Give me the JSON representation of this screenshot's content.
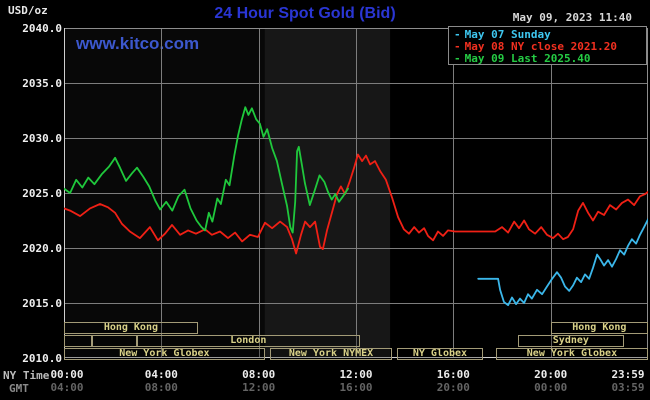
{
  "header": {
    "instrument": "USD/oz",
    "title": "24 Hour Spot Gold (Bid)",
    "timestamp": "May 09, 2023 11:40",
    "watermark": "www.kitco.com"
  },
  "legend": [
    {
      "label": "May 07 Sunday",
      "color": "#3ec7f0"
    },
    {
      "label": "May 08 NY close 2021.20",
      "color": "#f23020"
    },
    {
      "label": "May 09 Last 2025.40",
      "color": "#25cc44"
    }
  ],
  "axis": {
    "ny_time_label": "NY Time",
    "gmt_label": "GMT",
    "ticks": [
      {
        "h": 0,
        "ny": "00:00",
        "gmt": "04:00"
      },
      {
        "h": 4,
        "ny": "04:00",
        "gmt": "08:00"
      },
      {
        "h": 8,
        "ny": "08:00",
        "gmt": "12:00"
      },
      {
        "h": 12,
        "ny": "12:00",
        "gmt": "16:00"
      },
      {
        "h": 16,
        "ny": "16:00",
        "gmt": "20:00"
      },
      {
        "h": 20,
        "ny": "20:00",
        "gmt": "00:00"
      },
      {
        "h": 23.983,
        "ny": "23:59",
        "gmt": "03:59"
      }
    ]
  },
  "sessions": [
    {
      "row": 1,
      "from": 0.0,
      "to": 5.5,
      "label": "Hong Kong"
    },
    {
      "row": 1,
      "from": 20.0,
      "to": 24.0,
      "label": "Hong Kong"
    },
    {
      "row": 2,
      "from": 0.0,
      "to": 1.15,
      "label": ""
    },
    {
      "row": 2,
      "from": 1.15,
      "to": 3.0,
      "label": ""
    },
    {
      "row": 2,
      "from": 3.0,
      "to": 12.15,
      "label": "London"
    },
    {
      "row": 2,
      "from": 18.66,
      "to": 23.0,
      "label": "Sydney"
    },
    {
      "row": 3,
      "from": 0.0,
      "to": 8.25,
      "label": "New York Globex"
    },
    {
      "row": 3,
      "from": 8.45,
      "to": 13.5,
      "label": "New York NYMEX"
    },
    {
      "row": 3,
      "from": 13.7,
      "to": 17.2,
      "label": "NY Globex"
    },
    {
      "row": 3,
      "from": 17.75,
      "to": 24.0,
      "label": "New York Globex"
    }
  ],
  "chart_data": {
    "type": "line",
    "title": "24 Hour Spot Gold (Bid)",
    "x_axis": {
      "unit": "hour (NY time)",
      "range": [
        0,
        24
      ]
    },
    "y_axis": {
      "unit": "USD/oz",
      "range": [
        2010,
        2040
      ],
      "ticks": [
        2040,
        2035,
        2030,
        2025,
        2020,
        2015,
        2010
      ]
    },
    "grid": true,
    "legend_position": "top-right",
    "highlight_bands": [
      {
        "from": 0.0,
        "to": 8.25,
        "opacity": 0.03
      },
      {
        "from": 8.25,
        "to": 13.4,
        "opacity": 0.09
      }
    ],
    "series": [
      {
        "name": "May 07 Sunday",
        "color": "#3bb7ea",
        "points": [
          [
            17.02,
            2017.2
          ],
          [
            17.84,
            2017.2
          ],
          [
            17.92,
            2016.2
          ],
          [
            18.08,
            2015.1
          ],
          [
            18.25,
            2014.8
          ],
          [
            18.41,
            2015.5
          ],
          [
            18.58,
            2014.9
          ],
          [
            18.74,
            2015.4
          ],
          [
            18.91,
            2015.0
          ],
          [
            19.07,
            2015.8
          ],
          [
            19.23,
            2015.4
          ],
          [
            19.44,
            2016.2
          ],
          [
            19.65,
            2015.8
          ],
          [
            19.85,
            2016.5
          ],
          [
            20.06,
            2017.2
          ],
          [
            20.26,
            2017.8
          ],
          [
            20.43,
            2017.3
          ],
          [
            20.59,
            2016.5
          ],
          [
            20.76,
            2016.1
          ],
          [
            20.92,
            2016.6
          ],
          [
            21.08,
            2017.3
          ],
          [
            21.25,
            2016.9
          ],
          [
            21.41,
            2017.6
          ],
          [
            21.58,
            2017.2
          ],
          [
            21.74,
            2018.2
          ],
          [
            21.91,
            2019.4
          ],
          [
            22.03,
            2019.0
          ],
          [
            22.19,
            2018.4
          ],
          [
            22.36,
            2018.9
          ],
          [
            22.52,
            2018.3
          ],
          [
            22.69,
            2019.0
          ],
          [
            22.85,
            2019.8
          ],
          [
            23.02,
            2019.4
          ],
          [
            23.18,
            2020.2
          ],
          [
            23.34,
            2020.8
          ],
          [
            23.51,
            2020.4
          ],
          [
            23.67,
            2021.2
          ],
          [
            23.84,
            2021.9
          ],
          [
            24.0,
            2022.6
          ]
        ]
      },
      {
        "name": "May 08 NY close 2021.20",
        "color": "#f02015",
        "close": 2021.2,
        "points": [
          [
            0.0,
            2023.6
          ],
          [
            0.25,
            2023.4
          ],
          [
            0.66,
            2022.9
          ],
          [
            1.07,
            2023.6
          ],
          [
            1.48,
            2024.0
          ],
          [
            1.81,
            2023.7
          ],
          [
            2.1,
            2023.2
          ],
          [
            2.38,
            2022.2
          ],
          [
            2.71,
            2021.5
          ],
          [
            3.12,
            2020.9
          ],
          [
            3.53,
            2021.9
          ],
          [
            3.86,
            2020.7
          ],
          [
            4.15,
            2021.3
          ],
          [
            4.44,
            2022.1
          ],
          [
            4.77,
            2021.2
          ],
          [
            5.1,
            2021.6
          ],
          [
            5.42,
            2021.3
          ],
          [
            5.8,
            2021.7
          ],
          [
            6.08,
            2021.2
          ],
          [
            6.41,
            2021.5
          ],
          [
            6.74,
            2020.9
          ],
          [
            7.03,
            2021.4
          ],
          [
            7.32,
            2020.6
          ],
          [
            7.64,
            2021.2
          ],
          [
            7.97,
            2021.0
          ],
          [
            8.26,
            2022.3
          ],
          [
            8.55,
            2021.8
          ],
          [
            8.88,
            2022.4
          ],
          [
            9.17,
            2021.9
          ],
          [
            9.37,
            2020.8
          ],
          [
            9.54,
            2019.5
          ],
          [
            9.74,
            2021.2
          ],
          [
            9.91,
            2022.4
          ],
          [
            10.11,
            2021.9
          ],
          [
            10.32,
            2022.4
          ],
          [
            10.52,
            2020.1
          ],
          [
            10.64,
            2019.9
          ],
          [
            10.81,
            2021.6
          ],
          [
            11.01,
            2023.2
          ],
          [
            11.22,
            2024.9
          ],
          [
            11.38,
            2025.6
          ],
          [
            11.55,
            2024.9
          ],
          [
            11.75,
            2026.1
          ],
          [
            11.92,
            2027.3
          ],
          [
            12.08,
            2028.5
          ],
          [
            12.25,
            2027.9
          ],
          [
            12.41,
            2028.4
          ],
          [
            12.58,
            2027.6
          ],
          [
            12.78,
            2027.9
          ],
          [
            12.99,
            2027.0
          ],
          [
            13.23,
            2026.2
          ],
          [
            13.48,
            2024.6
          ],
          [
            13.73,
            2022.8
          ],
          [
            13.97,
            2021.7
          ],
          [
            14.18,
            2021.3
          ],
          [
            14.39,
            2021.9
          ],
          [
            14.59,
            2021.4
          ],
          [
            14.8,
            2021.8
          ],
          [
            14.96,
            2021.1
          ],
          [
            15.17,
            2020.7
          ],
          [
            15.37,
            2021.5
          ],
          [
            15.58,
            2021.1
          ],
          [
            15.78,
            2021.6
          ],
          [
            16.07,
            2021.5
          ],
          [
            16.69,
            2021.5
          ],
          [
            17.3,
            2021.5
          ],
          [
            17.72,
            2021.5
          ],
          [
            18.0,
            2021.9
          ],
          [
            18.25,
            2021.4
          ],
          [
            18.5,
            2022.4
          ],
          [
            18.7,
            2021.8
          ],
          [
            18.91,
            2022.5
          ],
          [
            19.11,
            2021.7
          ],
          [
            19.36,
            2021.3
          ],
          [
            19.61,
            2021.9
          ],
          [
            19.85,
            2021.2
          ],
          [
            20.1,
            2020.9
          ],
          [
            20.3,
            2021.3
          ],
          [
            20.51,
            2020.8
          ],
          [
            20.71,
            2021.0
          ],
          [
            20.92,
            2021.7
          ],
          [
            21.13,
            2023.4
          ],
          [
            21.33,
            2024.1
          ],
          [
            21.54,
            2023.2
          ],
          [
            21.74,
            2022.5
          ],
          [
            21.95,
            2023.3
          ],
          [
            22.19,
            2023.0
          ],
          [
            22.44,
            2023.9
          ],
          [
            22.69,
            2023.5
          ],
          [
            22.93,
            2024.1
          ],
          [
            23.18,
            2024.4
          ],
          [
            23.43,
            2023.9
          ],
          [
            23.67,
            2024.7
          ],
          [
            23.88,
            2024.9
          ],
          [
            24.0,
            2025.1
          ]
        ]
      },
      {
        "name": "May 09 Last 2025.40",
        "color": "#1fc83c",
        "last": 2025.4,
        "points": [
          [
            0.0,
            2025.4
          ],
          [
            0.25,
            2025.0
          ],
          [
            0.5,
            2026.2
          ],
          [
            0.75,
            2025.5
          ],
          [
            1.0,
            2026.4
          ],
          [
            1.25,
            2025.8
          ],
          [
            1.55,
            2026.7
          ],
          [
            1.85,
            2027.4
          ],
          [
            2.1,
            2028.2
          ],
          [
            2.3,
            2027.3
          ],
          [
            2.55,
            2026.1
          ],
          [
            2.8,
            2026.8
          ],
          [
            3.0,
            2027.3
          ],
          [
            3.25,
            2026.5
          ],
          [
            3.5,
            2025.6
          ],
          [
            3.75,
            2024.3
          ],
          [
            3.95,
            2023.5
          ],
          [
            4.2,
            2024.2
          ],
          [
            4.45,
            2023.4
          ],
          [
            4.7,
            2024.7
          ],
          [
            4.95,
            2025.3
          ],
          [
            5.2,
            2023.6
          ],
          [
            5.45,
            2022.5
          ],
          [
            5.65,
            2021.9
          ],
          [
            5.8,
            2021.6
          ],
          [
            5.95,
            2023.2
          ],
          [
            6.1,
            2022.4
          ],
          [
            6.3,
            2024.5
          ],
          [
            6.45,
            2024.0
          ],
          [
            6.65,
            2026.2
          ],
          [
            6.8,
            2025.7
          ],
          [
            7.0,
            2028.4
          ],
          [
            7.15,
            2030.2
          ],
          [
            7.3,
            2031.6
          ],
          [
            7.45,
            2032.8
          ],
          [
            7.58,
            2032.1
          ],
          [
            7.72,
            2032.7
          ],
          [
            7.9,
            2031.7
          ],
          [
            8.05,
            2031.3
          ],
          [
            8.2,
            2030.1
          ],
          [
            8.35,
            2030.8
          ],
          [
            8.55,
            2029.1
          ],
          [
            8.75,
            2027.9
          ],
          [
            8.95,
            2025.9
          ],
          [
            9.17,
            2023.8
          ],
          [
            9.3,
            2021.9
          ],
          [
            9.4,
            2021.4
          ],
          [
            9.5,
            2024.2
          ],
          [
            9.58,
            2028.8
          ],
          [
            9.65,
            2029.2
          ],
          [
            9.78,
            2027.5
          ],
          [
            9.9,
            2025.9
          ],
          [
            10.1,
            2023.9
          ],
          [
            10.3,
            2025.2
          ],
          [
            10.5,
            2026.6
          ],
          [
            10.7,
            2026.0
          ],
          [
            10.85,
            2025.1
          ],
          [
            11.0,
            2024.4
          ],
          [
            11.15,
            2024.9
          ],
          [
            11.3,
            2024.2
          ],
          [
            11.5,
            2024.8
          ],
          [
            11.67,
            2025.4
          ]
        ]
      }
    ]
  }
}
